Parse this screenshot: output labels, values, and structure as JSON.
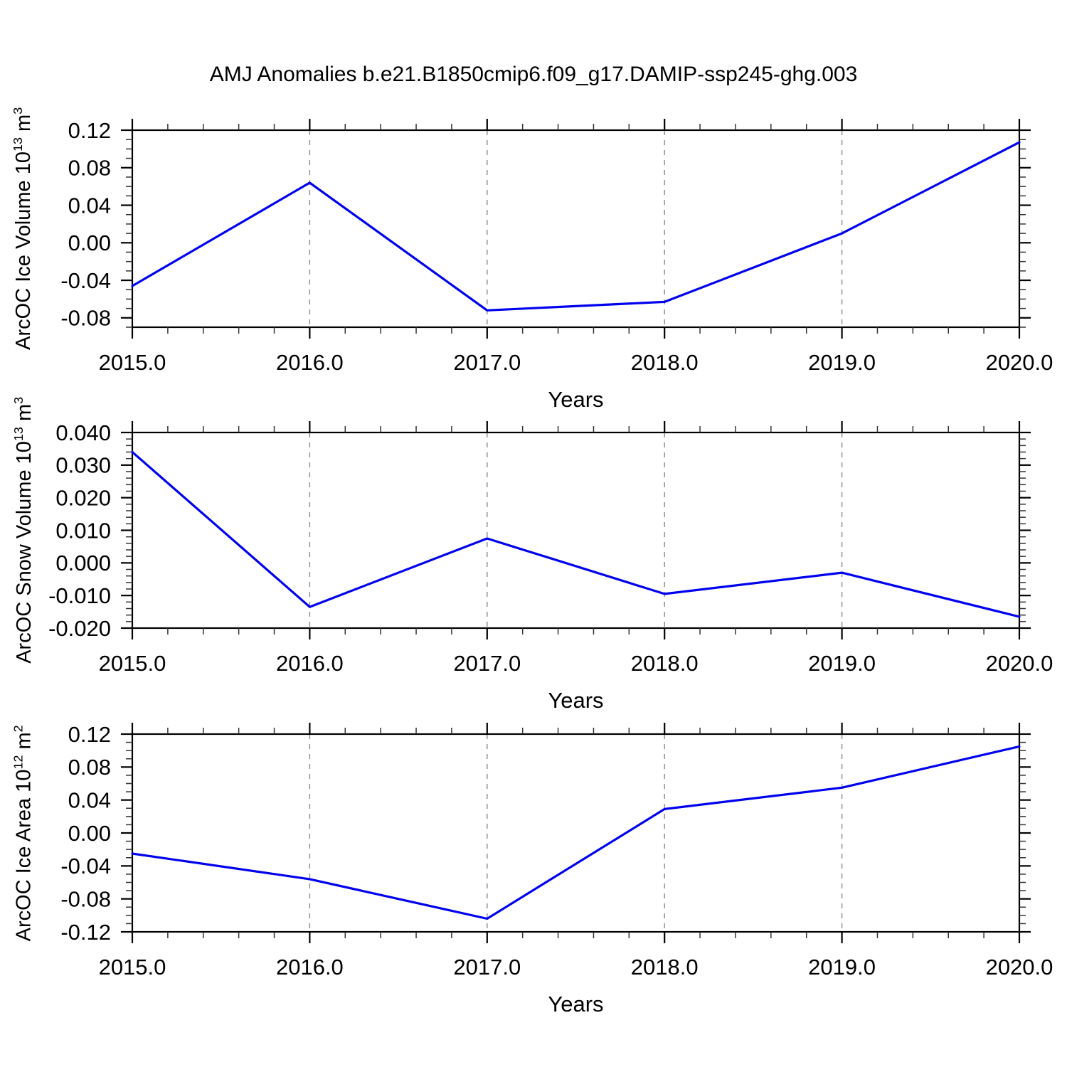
{
  "title": "AMJ Anomalies b.e21.B1850cmip6.f09_g17.DAMIP-ssp245-ghg.003",
  "colors": {
    "line": "#0000EE",
    "axis": "#000000",
    "grid": "#8A8A8A",
    "background": "#FFFFFF"
  },
  "chart_data": [
    {
      "type": "line",
      "panel": "top",
      "ylabel_parts": {
        "base1": "ArcOC Ice Volume 10",
        "sup1": "13",
        "base2": " m",
        "sup2": "3"
      },
      "xlabel": "Years",
      "x": [
        2015,
        2016,
        2017,
        2018,
        2019,
        2020
      ],
      "values": [
        -0.046,
        0.064,
        -0.072,
        -0.063,
        0.01,
        0.107
      ],
      "xlim": [
        2015,
        2020
      ],
      "ylim": [
        -0.09,
        0.12
      ],
      "x_ticks": [
        {
          "v": 2015,
          "label": "2015.0"
        },
        {
          "v": 2016,
          "label": "2016.0"
        },
        {
          "v": 2017,
          "label": "2017.0"
        },
        {
          "v": 2018,
          "label": "2018.0"
        },
        {
          "v": 2019,
          "label": "2019.0"
        },
        {
          "v": 2020,
          "label": "2020.0"
        }
      ],
      "x_minor_step": 0.2,
      "y_ticks": [
        {
          "v": 0.12,
          "label": "0.12"
        },
        {
          "v": 0.08,
          "label": "0.08"
        },
        {
          "v": 0.04,
          "label": "0.04"
        },
        {
          "v": 0.0,
          "label": "0.00"
        },
        {
          "v": -0.04,
          "label": "-0.04"
        },
        {
          "v": -0.08,
          "label": "-0.08"
        }
      ],
      "y_minor_step": 0.01,
      "grid_x": [
        2016,
        2017,
        2018,
        2019
      ],
      "grid": "vertical-dashed",
      "legend": "none"
    },
    {
      "type": "line",
      "panel": "middle",
      "ylabel_parts": {
        "base1": "ArcOC Snow Volume 10",
        "sup1": "13",
        "base2": " m",
        "sup2": "3"
      },
      "xlabel": "Years",
      "x": [
        2015,
        2016,
        2017,
        2018,
        2019,
        2020
      ],
      "values": [
        0.034,
        -0.0135,
        0.0075,
        -0.0095,
        -0.003,
        -0.0165
      ],
      "xlim": [
        2015,
        2020
      ],
      "ylim": [
        -0.02,
        0.04
      ],
      "x_ticks": [
        {
          "v": 2015,
          "label": "2015.0"
        },
        {
          "v": 2016,
          "label": "2016.0"
        },
        {
          "v": 2017,
          "label": "2017.0"
        },
        {
          "v": 2018,
          "label": "2018.0"
        },
        {
          "v": 2019,
          "label": "2019.0"
        },
        {
          "v": 2020,
          "label": "2020.0"
        }
      ],
      "x_minor_step": 0.2,
      "y_ticks": [
        {
          "v": 0.04,
          "label": "0.040"
        },
        {
          "v": 0.03,
          "label": "0.030"
        },
        {
          "v": 0.02,
          "label": "0.020"
        },
        {
          "v": 0.01,
          "label": "0.010"
        },
        {
          "v": 0.0,
          "label": "0.000"
        },
        {
          "v": -0.01,
          "label": "-0.010"
        },
        {
          "v": -0.02,
          "label": "-0.020"
        }
      ],
      "y_minor_step": 0.002,
      "grid_x": [
        2016,
        2017,
        2018,
        2019
      ],
      "grid": "vertical-dashed",
      "legend": "none"
    },
    {
      "type": "line",
      "panel": "bottom",
      "ylabel_parts": {
        "base1": "ArcOC Ice Area 10",
        "sup1": "12",
        "base2": " m",
        "sup2": "2"
      },
      "xlabel": "Years",
      "x": [
        2015,
        2016,
        2017,
        2018,
        2019,
        2020
      ],
      "values": [
        -0.025,
        -0.056,
        -0.104,
        0.029,
        0.055,
        0.105
      ],
      "xlim": [
        2015,
        2020
      ],
      "ylim": [
        -0.12,
        0.12
      ],
      "x_ticks": [
        {
          "v": 2015,
          "label": "2015.0"
        },
        {
          "v": 2016,
          "label": "2016.0"
        },
        {
          "v": 2017,
          "label": "2017.0"
        },
        {
          "v": 2018,
          "label": "2018.0"
        },
        {
          "v": 2019,
          "label": "2019.0"
        },
        {
          "v": 2020,
          "label": "2020.0"
        }
      ],
      "x_minor_step": 0.2,
      "y_ticks": [
        {
          "v": 0.12,
          "label": "0.12"
        },
        {
          "v": 0.08,
          "label": "0.08"
        },
        {
          "v": 0.04,
          "label": "0.04"
        },
        {
          "v": 0.0,
          "label": "0.00"
        },
        {
          "v": -0.04,
          "label": "-0.04"
        },
        {
          "v": -0.08,
          "label": "-0.08"
        },
        {
          "v": -0.12,
          "label": "-0.12"
        }
      ],
      "y_minor_step": 0.01,
      "grid_x": [
        2016,
        2017,
        2018,
        2019
      ],
      "grid": "vertical-dashed",
      "legend": "none"
    }
  ]
}
